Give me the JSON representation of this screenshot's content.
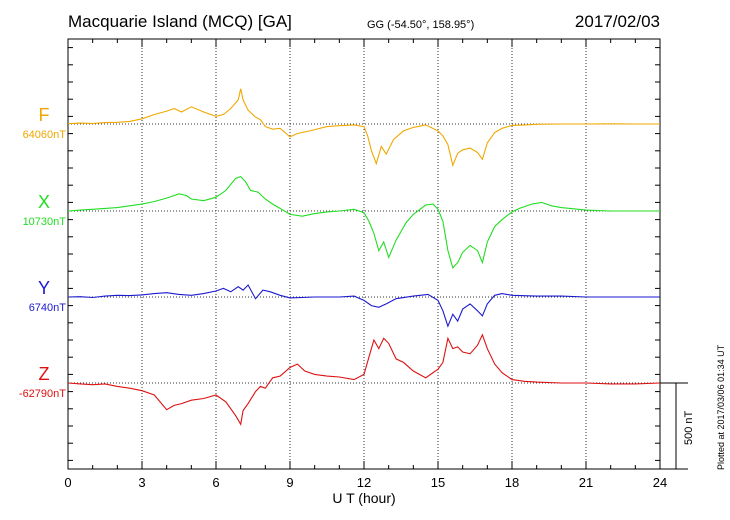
{
  "header": {
    "station": "Macquarie Island (MCQ)  [GA]",
    "coords": "GG (-54.50°, 158.95°)",
    "date": "2017/02/03"
  },
  "footer": {
    "plotted": "Plotted at 2017/03/06 01:34  UT",
    "scale_label": "500 nT"
  },
  "chart_data": {
    "type": "line",
    "xlabel": "U T (hour)",
    "xlim": [
      0,
      24
    ],
    "xticks": [
      "0",
      "3",
      "6",
      "9",
      "12",
      "15",
      "18",
      "21",
      "24"
    ],
    "grid": true,
    "scale_bar_nT": 500,
    "series": [
      {
        "name": "F",
        "baseline_label": "64060nT",
        "color": "#f0a800",
        "baseline_nT": 64060,
        "points": [
          [
            0,
            2
          ],
          [
            0.5,
            5
          ],
          [
            1,
            3
          ],
          [
            1.5,
            8
          ],
          [
            2,
            10
          ],
          [
            2.5,
            15
          ],
          [
            3,
            30
          ],
          [
            3.5,
            55
          ],
          [
            4,
            75
          ],
          [
            4.3,
            90
          ],
          [
            4.6,
            70
          ],
          [
            5,
            100
          ],
          [
            5.5,
            70
          ],
          [
            6,
            45
          ],
          [
            6.3,
            55
          ],
          [
            6.6,
            90
          ],
          [
            6.9,
            140
          ],
          [
            7,
            205
          ],
          [
            7.1,
            140
          ],
          [
            7.3,
            80
          ],
          [
            7.6,
            40
          ],
          [
            7.8,
            25
          ],
          [
            8,
            -15
          ],
          [
            8.3,
            -30
          ],
          [
            8.6,
            -25
          ],
          [
            9,
            -75
          ],
          [
            9.3,
            -55
          ],
          [
            9.8,
            -40
          ],
          [
            10.5,
            -15
          ],
          [
            11,
            -10
          ],
          [
            11.6,
            -5
          ],
          [
            12,
            -15
          ],
          [
            12.15,
            -70
          ],
          [
            12.3,
            -155
          ],
          [
            12.5,
            -230
          ],
          [
            12.7,
            -130
          ],
          [
            12.9,
            -175
          ],
          [
            13.2,
            -90
          ],
          [
            13.6,
            -40
          ],
          [
            14,
            -20
          ],
          [
            14.5,
            -5
          ],
          [
            15,
            -40
          ],
          [
            15.2,
            -70
          ],
          [
            15.4,
            -120
          ],
          [
            15.6,
            -240
          ],
          [
            15.8,
            -170
          ],
          [
            16,
            -150
          ],
          [
            16.3,
            -140
          ],
          [
            16.6,
            -165
          ],
          [
            16.8,
            -205
          ],
          [
            17,
            -110
          ],
          [
            17.3,
            -50
          ],
          [
            17.6,
            -25
          ],
          [
            18,
            -8
          ],
          [
            18.5,
            -5
          ],
          [
            19,
            -2
          ],
          [
            20,
            0
          ],
          [
            21,
            0
          ],
          [
            22,
            1
          ],
          [
            23,
            0
          ],
          [
            24,
            0
          ]
        ]
      },
      {
        "name": "X",
        "baseline_label": "10730nT",
        "color": "#22dd22",
        "baseline_nT": 10730,
        "points": [
          [
            0,
            0
          ],
          [
            0.5,
            5
          ],
          [
            1,
            10
          ],
          [
            1.5,
            15
          ],
          [
            2,
            20
          ],
          [
            2.5,
            30
          ],
          [
            3,
            40
          ],
          [
            3.5,
            55
          ],
          [
            4,
            75
          ],
          [
            4.5,
            100
          ],
          [
            4.8,
            90
          ],
          [
            5,
            70
          ],
          [
            5.5,
            60
          ],
          [
            6,
            80
          ],
          [
            6.4,
            120
          ],
          [
            6.8,
            190
          ],
          [
            7,
            200
          ],
          [
            7.2,
            170
          ],
          [
            7.4,
            120
          ],
          [
            7.7,
            110
          ],
          [
            8,
            70
          ],
          [
            8.3,
            40
          ],
          [
            8.6,
            15
          ],
          [
            9,
            -20
          ],
          [
            9.5,
            -30
          ],
          [
            10,
            -15
          ],
          [
            10.5,
            -5
          ],
          [
            11,
            0
          ],
          [
            11.6,
            10
          ],
          [
            12,
            -10
          ],
          [
            12.2,
            -60
          ],
          [
            12.4,
            -130
          ],
          [
            12.6,
            -230
          ],
          [
            12.8,
            -180
          ],
          [
            13,
            -270
          ],
          [
            13.3,
            -170
          ],
          [
            13.7,
            -70
          ],
          [
            14,
            -20
          ],
          [
            14.5,
            35
          ],
          [
            14.8,
            40
          ],
          [
            15,
            10
          ],
          [
            15.2,
            -60
          ],
          [
            15.4,
            -230
          ],
          [
            15.6,
            -330
          ],
          [
            15.8,
            -300
          ],
          [
            16,
            -240
          ],
          [
            16.3,
            -200
          ],
          [
            16.6,
            -230
          ],
          [
            16.8,
            -300
          ],
          [
            17,
            -180
          ],
          [
            17.3,
            -90
          ],
          [
            17.6,
            -50
          ],
          [
            18,
            -5
          ],
          [
            18.3,
            15
          ],
          [
            18.8,
            40
          ],
          [
            19.2,
            50
          ],
          [
            19.6,
            30
          ],
          [
            20,
            20
          ],
          [
            21,
            5
          ],
          [
            22,
            0
          ],
          [
            23,
            0
          ],
          [
            24,
            0
          ]
        ]
      },
      {
        "name": "Y",
        "baseline_label": "6740nT",
        "color": "#1a1ad0",
        "baseline_nT": 6740,
        "points": [
          [
            0,
            0
          ],
          [
            0.5,
            2
          ],
          [
            1,
            -3
          ],
          [
            1.5,
            5
          ],
          [
            2,
            10
          ],
          [
            2.5,
            8
          ],
          [
            3,
            12
          ],
          [
            3.5,
            20
          ],
          [
            4,
            25
          ],
          [
            4.5,
            15
          ],
          [
            5,
            10
          ],
          [
            5.5,
            20
          ],
          [
            6,
            35
          ],
          [
            6.3,
            50
          ],
          [
            6.6,
            30
          ],
          [
            6.9,
            60
          ],
          [
            7.1,
            40
          ],
          [
            7.3,
            70
          ],
          [
            7.6,
            -10
          ],
          [
            7.9,
            40
          ],
          [
            8.2,
            30
          ],
          [
            8.6,
            10
          ],
          [
            9,
            -5
          ],
          [
            10,
            0
          ],
          [
            11,
            0
          ],
          [
            11.6,
            5
          ],
          [
            12,
            -20
          ],
          [
            12.3,
            -50
          ],
          [
            12.6,
            -60
          ],
          [
            12.9,
            -40
          ],
          [
            13.3,
            -10
          ],
          [
            14,
            5
          ],
          [
            14.6,
            15
          ],
          [
            15,
            -20
          ],
          [
            15.2,
            -80
          ],
          [
            15.4,
            -170
          ],
          [
            15.6,
            -100
          ],
          [
            15.8,
            -140
          ],
          [
            16,
            -70
          ],
          [
            16.3,
            -40
          ],
          [
            16.6,
            -80
          ],
          [
            16.8,
            -110
          ],
          [
            17,
            -40
          ],
          [
            17.3,
            10
          ],
          [
            17.6,
            20
          ],
          [
            18,
            10
          ],
          [
            19,
            5
          ],
          [
            20,
            5
          ],
          [
            21,
            0
          ],
          [
            22,
            0
          ],
          [
            23,
            0
          ],
          [
            24,
            0
          ]
        ]
      },
      {
        "name": "Z",
        "baseline_label": "-62790nT",
        "color": "#dd1111",
        "baseline_nT": -62790,
        "points": [
          [
            0,
            0
          ],
          [
            0.5,
            -5
          ],
          [
            1,
            -10
          ],
          [
            1.5,
            -5
          ],
          [
            2,
            -20
          ],
          [
            2.5,
            -30
          ],
          [
            3,
            -45
          ],
          [
            3.5,
            -70
          ],
          [
            4,
            -155
          ],
          [
            4.3,
            -130
          ],
          [
            4.6,
            -120
          ],
          [
            5,
            -100
          ],
          [
            5.5,
            -90
          ],
          [
            6,
            -70
          ],
          [
            6.4,
            -110
          ],
          [
            6.8,
            -190
          ],
          [
            7,
            -240
          ],
          [
            7.1,
            -160
          ],
          [
            7.3,
            -120
          ],
          [
            7.6,
            -50
          ],
          [
            7.8,
            -20
          ],
          [
            8,
            -30
          ],
          [
            8.3,
            30
          ],
          [
            8.6,
            40
          ],
          [
            9,
            90
          ],
          [
            9.3,
            110
          ],
          [
            9.6,
            70
          ],
          [
            10,
            50
          ],
          [
            10.5,
            40
          ],
          [
            11,
            35
          ],
          [
            11.6,
            20
          ],
          [
            12,
            50
          ],
          [
            12.2,
            150
          ],
          [
            12.4,
            250
          ],
          [
            12.6,
            200
          ],
          [
            12.8,
            260
          ],
          [
            13,
            230
          ],
          [
            13.3,
            140
          ],
          [
            13.6,
            120
          ],
          [
            14,
            70
          ],
          [
            14.5,
            30
          ],
          [
            15,
            80
          ],
          [
            15.2,
            120
          ],
          [
            15.4,
            260
          ],
          [
            15.6,
            200
          ],
          [
            15.8,
            210
          ],
          [
            16,
            180
          ],
          [
            16.3,
            170
          ],
          [
            16.6,
            220
          ],
          [
            16.8,
            280
          ],
          [
            17,
            200
          ],
          [
            17.3,
            110
          ],
          [
            17.6,
            60
          ],
          [
            18,
            20
          ],
          [
            18.5,
            10
          ],
          [
            19,
            5
          ],
          [
            20,
            0
          ],
          [
            21,
            0
          ],
          [
            22,
            -5
          ],
          [
            23,
            -5
          ],
          [
            24,
            0
          ]
        ]
      }
    ]
  }
}
